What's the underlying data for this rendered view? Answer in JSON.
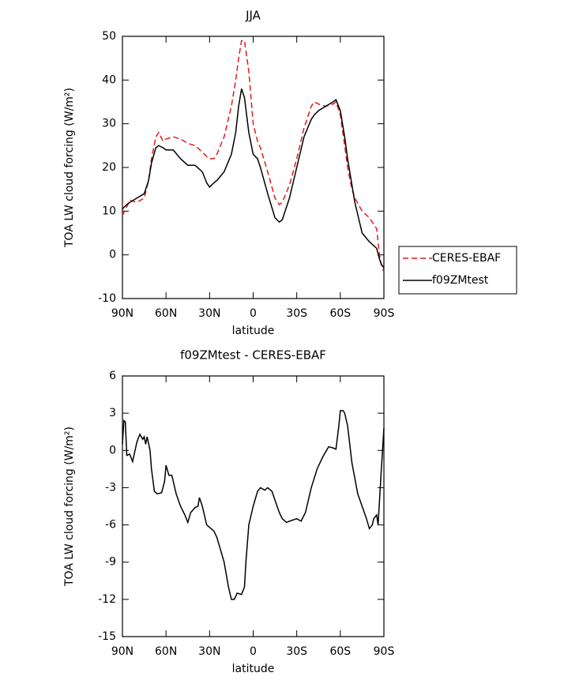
{
  "chart_data": [
    {
      "type": "line",
      "title": "JJA",
      "xlabel": "latitude",
      "ylabel": "TOA LW cloud forcing (W/m²)",
      "x": [
        90,
        87,
        85,
        80,
        75,
        72,
        70,
        67,
        65,
        62,
        60,
        55,
        50,
        45,
        40,
        35,
        32,
        30,
        27,
        25,
        20,
        15,
        12,
        10,
        8,
        6,
        3,
        0,
        -3,
        -5,
        -10,
        -15,
        -18,
        -20,
        -25,
        -30,
        -35,
        -40,
        -42,
        -45,
        -50,
        -55,
        -57,
        -60,
        -63,
        -65,
        -68,
        -70,
        -75,
        -80,
        -85,
        -87,
        -88,
        -90
      ],
      "series": [
        {
          "name": "CERES-EBAF",
          "color": "#e41a1c",
          "linestyle": "dashed",
          "values": [
            9,
            11,
            12.5,
            12,
            13,
            17,
            22,
            27,
            28,
            26,
            26.5,
            27,
            26.5,
            25.5,
            25,
            23.5,
            22.5,
            22,
            22,
            23,
            27,
            34,
            40,
            45,
            49,
            49,
            42,
            30,
            26,
            24.5,
            19,
            13,
            11.5,
            12,
            16,
            22,
            29,
            34,
            35,
            34.5,
            34,
            34.5,
            35,
            32,
            25,
            20,
            15,
            13,
            10,
            8.5,
            6,
            0,
            -2,
            -4
          ]
        },
        {
          "name": "f09ZMtest",
          "color": "#000000",
          "linestyle": "solid",
          "values": [
            10.5,
            11.5,
            12,
            13,
            14,
            17,
            21,
            24.5,
            25,
            24.5,
            24,
            24,
            22,
            20.5,
            20.5,
            19,
            16.5,
            15.5,
            16.5,
            17,
            19,
            23,
            28,
            34,
            38,
            36,
            28,
            23,
            22,
            20,
            14,
            8.5,
            7.5,
            8,
            13,
            20,
            27,
            31,
            32,
            33,
            34,
            35,
            35.5,
            33,
            27,
            22,
            16,
            12,
            5,
            3,
            1.5,
            -1,
            -2,
            -3
          ]
        }
      ],
      "xlim": [
        90,
        -90
      ],
      "xticks": [
        {
          "value": 90,
          "label": "90N"
        },
        {
          "value": 60,
          "label": "60N"
        },
        {
          "value": 30,
          "label": "30N"
        },
        0,
        {
          "value": -30,
          "label": "30S"
        },
        {
          "value": -60,
          "label": "60S"
        },
        {
          "value": -90,
          "label": "90S"
        }
      ],
      "ylim": [
        -10,
        50
      ],
      "yticks": [
        -10,
        0,
        10,
        20,
        30,
        40,
        50
      ],
      "legend": "right"
    },
    {
      "type": "line",
      "title": "f09ZMtest - CERES-EBAF",
      "xlabel": "latitude",
      "ylabel": "TOA LW cloud forcing (W/m²)",
      "x": [
        90,
        89,
        88,
        87,
        85,
        83,
        80,
        78,
        76,
        75,
        74,
        73,
        71,
        70,
        68,
        66,
        63,
        61,
        60,
        58,
        56,
        53,
        50,
        47,
        45,
        43,
        40,
        38,
        37,
        35,
        32,
        30,
        27,
        25,
        20,
        17,
        15,
        13,
        11,
        8,
        6,
        5,
        3,
        1,
        0,
        -3,
        -5,
        -8,
        -10,
        -13,
        -15,
        -18,
        -20,
        -23,
        -25,
        -30,
        -33,
        -36,
        -40,
        -44,
        -48,
        -52,
        -55,
        -57,
        -59,
        -60,
        -62,
        -63,
        -65,
        -68,
        -72,
        -75,
        -78,
        -80,
        -82,
        -83,
        -85,
        -86,
        -87,
        -88,
        -90
      ],
      "series": [
        {
          "name": "f09ZMtest - CERES-EBAF",
          "color": "#000000",
          "linestyle": "solid",
          "values": [
            0.5,
            2.4,
            2.3,
            -0.4,
            -0.3,
            -0.9,
            0.7,
            1.3,
            0.9,
            1.1,
            0.5,
            1.1,
            0,
            -1.5,
            -3.3,
            -3.5,
            -3.4,
            -2.5,
            -1.2,
            -2,
            -2,
            -3.5,
            -4.5,
            -5.2,
            -5.8,
            -5,
            -4.6,
            -4.5,
            -3.8,
            -4.5,
            -6,
            -6.2,
            -6.5,
            -7,
            -9,
            -11,
            -12,
            -12,
            -11.5,
            -11.6,
            -11,
            -9,
            -6,
            -5,
            -4.5,
            -3.3,
            -3,
            -3.2,
            -3,
            -3.3,
            -4,
            -5,
            -5.5,
            -5.8,
            -5.7,
            -5.5,
            -5.7,
            -5,
            -3,
            -1.5,
            -0.5,
            0.3,
            0.2,
            0.1,
            2,
            3.2,
            3.2,
            3,
            2,
            -1,
            -3.5,
            -4.5,
            -5.5,
            -6.3,
            -6,
            -5.5,
            -5.2,
            -6,
            -4,
            -2,
            1.8
          ]
        }
      ],
      "xlim": [
        90,
        -90
      ],
      "xticks": [
        {
          "value": 90,
          "label": "90N"
        },
        {
          "value": 60,
          "label": "60N"
        },
        {
          "value": 30,
          "label": "30N"
        },
        0,
        {
          "value": -30,
          "label": "30S"
        },
        {
          "value": -60,
          "label": "60S"
        },
        {
          "value": -90,
          "label": "90S"
        }
      ],
      "ylim": [
        -15,
        6
      ],
      "yticks": [
        -15,
        -12,
        -9,
        -6,
        -3,
        0,
        3,
        6
      ]
    }
  ]
}
